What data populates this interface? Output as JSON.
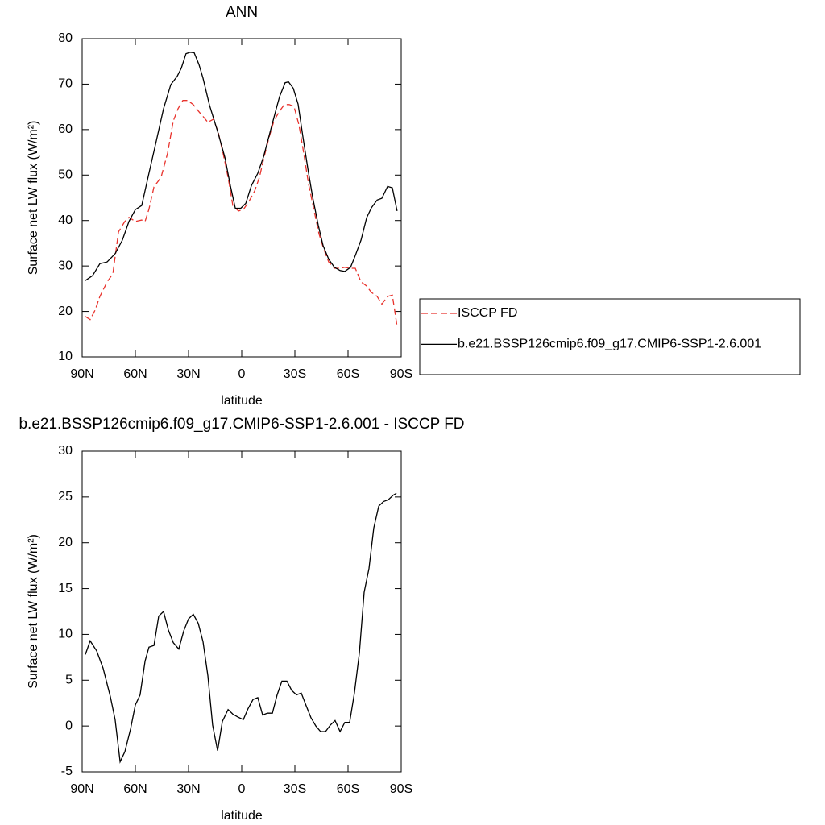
{
  "chart_data": [
    {
      "type": "line",
      "title": "ANN",
      "xlabel": "latitude",
      "ylabel": "Surface net LW flux (W/m²)",
      "xlim": [
        90,
        -90
      ],
      "xticks": [
        {
          "value": 90,
          "label": "90N"
        },
        {
          "value": 60,
          "label": "60N"
        },
        {
          "value": 30,
          "label": "30N"
        },
        0,
        {
          "value": -30,
          "label": "30S"
        },
        {
          "value": -60,
          "label": "60S"
        },
        {
          "value": -90,
          "label": "90S"
        }
      ],
      "ylim": [
        10,
        80
      ],
      "yticks": [
        10,
        20,
        30,
        40,
        50,
        60,
        70,
        80
      ],
      "series": [
        {
          "name": "ISCCP FD",
          "color": "#e8322c",
          "linestyle": "dashed",
          "x": [
            88.2,
            85.5,
            82.7,
            80,
            75.9,
            72.7,
            69.5,
            65.9,
            63.6,
            60,
            56.4,
            54.5,
            52.3,
            49.5,
            45.5,
            41.8,
            38.6,
            35.9,
            33.2,
            30.5,
            27.3,
            24.5,
            21.8,
            19.1,
            15.9,
            13.2,
            10.5,
            7.7,
            5,
            1.8,
            -0.9,
            -4.1,
            -7.3,
            -10,
            -12.7,
            -15.5,
            -18.2,
            -21.4,
            -24.1,
            -26.8,
            -29.5,
            -32.3,
            -35,
            -37.7,
            -40.5,
            -43.6,
            -46.4,
            -49.1,
            -52.3,
            -55.5,
            -58.2,
            -61.4,
            -64.1,
            -67.3,
            -70.5,
            -73.2,
            -76.4,
            -79.1,
            -82.3,
            -85,
            -87.7
          ],
          "values": [
            18.9,
            18.2,
            20.3,
            23.3,
            26.5,
            28.3,
            37.5,
            39.8,
            40.7,
            39.8,
            40.1,
            39.8,
            42.5,
            47.4,
            49.5,
            54.8,
            61.9,
            64.6,
            66.4,
            66.4,
            65.5,
            64.1,
            62.9,
            61.6,
            62.3,
            59.3,
            54.8,
            49.5,
            43.3,
            42.1,
            42.4,
            44.2,
            46.5,
            49.5,
            54,
            58.4,
            61.9,
            64.1,
            65.5,
            65.5,
            65.1,
            61,
            54.8,
            48.1,
            42.8,
            37.1,
            33.6,
            30.9,
            29.5,
            29.5,
            29.7,
            29.5,
            29.5,
            26.5,
            25.6,
            24.2,
            23.3,
            21.6,
            23.3,
            23.6,
            16.7
          ]
        },
        {
          "name": "b.e21.BSSP126cmip6.f09_g17.CMIP6-SSP1-2.6.001",
          "color": "#000000",
          "linestyle": "solid",
          "x": [
            88.2,
            84.1,
            80,
            75.9,
            71.4,
            67.3,
            63.6,
            60,
            56.4,
            52.3,
            48.2,
            44.1,
            40,
            36.4,
            34.1,
            31.4,
            29.1,
            26.8,
            24.1,
            21.8,
            18.2,
            13.6,
            9.5,
            6.4,
            3.6,
            0.5,
            -2.3,
            -5.5,
            -9.1,
            -12.3,
            -15.9,
            -19.5,
            -21.4,
            -24.5,
            -26.4,
            -29.1,
            -31.8,
            -34.5,
            -37.3,
            -40,
            -43.2,
            -45.9,
            -49.1,
            -52.3,
            -55.5,
            -58.2,
            -61.4,
            -64.1,
            -67.3,
            -70.5,
            -73.2,
            -76.4,
            -79.1,
            -82.3,
            -85,
            -87.7
          ],
          "values": [
            26.8,
            27.9,
            30.5,
            30.9,
            32.7,
            35.7,
            39.8,
            42.4,
            43.3,
            50.4,
            57.5,
            64.6,
            69.9,
            71.7,
            73.5,
            76.7,
            77,
            76.9,
            74.3,
            71.3,
            65.4,
            59.6,
            53.9,
            47.7,
            42.7,
            42.7,
            43.8,
            47.7,
            50.4,
            54,
            59.3,
            64.6,
            67.3,
            70.3,
            70.5,
            69.1,
            65.6,
            58.5,
            51.4,
            45.2,
            39,
            34.5,
            31.5,
            29.7,
            29,
            28.8,
            29.7,
            32.3,
            35.7,
            40.6,
            42.8,
            44.5,
            44.9,
            47.5,
            47.2,
            42.1
          ]
        }
      ]
    },
    {
      "type": "line",
      "title": "b.e21.BSSP126cmip6.f09_g17.CMIP6-SSP1-2.6.001 - ISCCP FD",
      "xlabel": "latitude",
      "ylabel": "Surface net LW flux (W/m²)",
      "xlim": [
        90,
        -90
      ],
      "xticks": [
        {
          "value": 90,
          "label": "90N"
        },
        {
          "value": 60,
          "label": "60N"
        },
        {
          "value": 30,
          "label": "30N"
        },
        0,
        {
          "value": -30,
          "label": "30S"
        },
        {
          "value": -60,
          "label": "60S"
        },
        {
          "value": -90,
          "label": "90S"
        }
      ],
      "ylim": [
        -5,
        30
      ],
      "yticks": [
        -5,
        0,
        5,
        10,
        15,
        20,
        25,
        30
      ],
      "series": [
        {
          "color": "#000000",
          "linestyle": "solid",
          "x": [
            88.2,
            85.5,
            81.8,
            78.2,
            74.1,
            71.4,
            68.6,
            65.9,
            62.7,
            60,
            57.3,
            54.5,
            52.3,
            49.5,
            46.8,
            44.1,
            41.4,
            38.6,
            35.5,
            32.7,
            30,
            27.3,
            24.5,
            21.8,
            19.1,
            16.4,
            13.6,
            10.9,
            7.7,
            5,
            2.3,
            -0.9,
            -3.6,
            -6.4,
            -9.1,
            -11.8,
            -14.5,
            -17.3,
            -20,
            -22.7,
            -25.5,
            -28.2,
            -30.9,
            -33.6,
            -36.4,
            -39.1,
            -41.8,
            -44.5,
            -47.3,
            -50,
            -52.7,
            -55.5,
            -58.2,
            -60.9,
            -63.6,
            -66.4,
            -69.1,
            -71.8,
            -74.5,
            -77.3,
            -80,
            -82.7,
            -85.5,
            -87.3
          ],
          "values": [
            7.8,
            9.3,
            8.2,
            6.3,
            3.2,
            0.7,
            -3.9,
            -2.8,
            -0.3,
            2.3,
            3.4,
            7.1,
            8.6,
            8.8,
            12,
            12.5,
            10.5,
            9.1,
            8.4,
            10.4,
            11.7,
            12.2,
            11.2,
            9.2,
            5.5,
            0.1,
            -2.7,
            0.5,
            1.8,
            1.3,
            1,
            0.7,
            1.9,
            2.9,
            3.1,
            1.2,
            1.4,
            1.4,
            3.4,
            4.9,
            4.9,
            3.9,
            3.4,
            3.6,
            2.2,
            0.9,
            0,
            -0.6,
            -0.6,
            0.1,
            0.6,
            -0.6,
            0.4,
            0.4,
            3.6,
            8,
            14.6,
            17.2,
            21.6,
            24,
            24.5,
            24.7,
            25.2,
            25.4
          ]
        }
      ]
    }
  ]
}
